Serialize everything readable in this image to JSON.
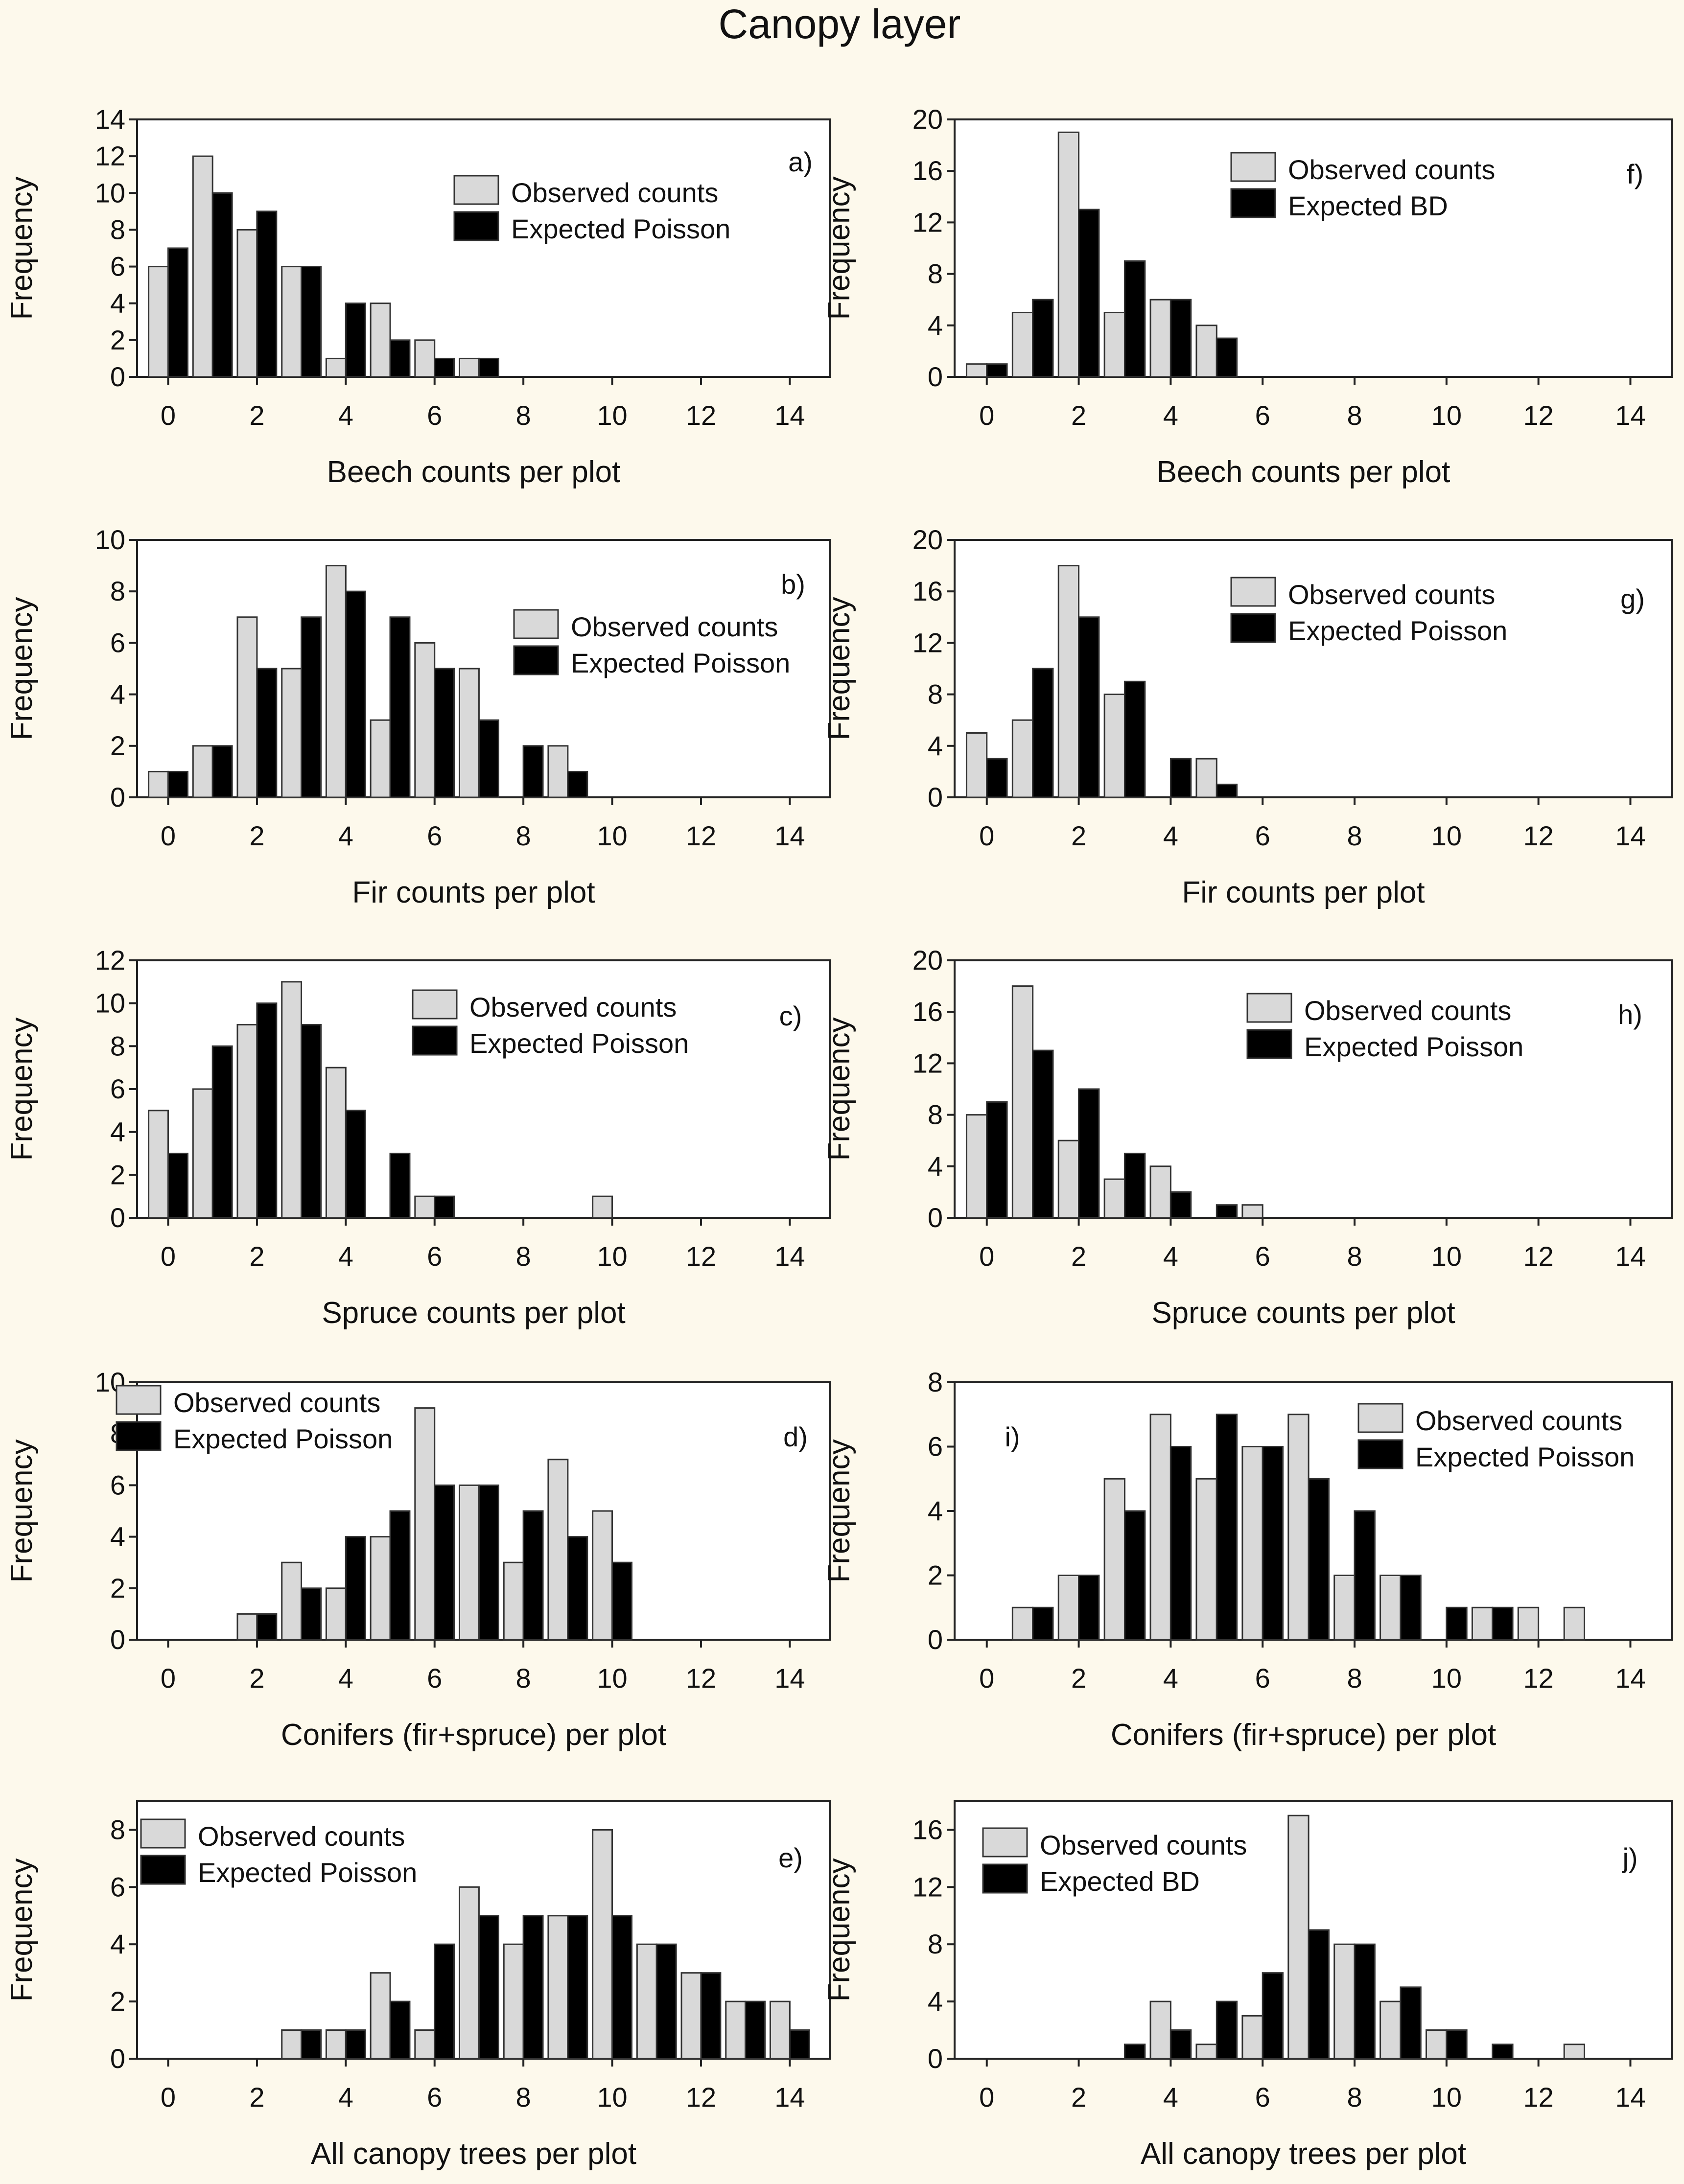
{
  "title": "Canopy layer",
  "colors": {
    "observed": "#d9d9d9",
    "expected": "#000000",
    "background": "#fdf9ec",
    "frame": "#222222"
  },
  "chart_data": [
    {
      "id": "a",
      "label": "a)",
      "type": "bar",
      "xlabel": "Beech counts per plot",
      "ylabel": "Frequency",
      "xlim": [
        -0.7,
        14.9
      ],
      "xticks": [
        0,
        2,
        4,
        6,
        8,
        10,
        12,
        14
      ],
      "ylim": [
        0,
        14
      ],
      "yticks": [
        0,
        2,
        4,
        6,
        8,
        10,
        12,
        14
      ],
      "legend_position": "top-right",
      "series": [
        {
          "name": "Observed counts",
          "x": [
            0,
            1,
            2,
            3,
            4,
            5,
            6,
            7
          ],
          "values": [
            6,
            12,
            8,
            6,
            1,
            4,
            2,
            1
          ]
        },
        {
          "name": "Expected Poisson",
          "x": [
            0,
            1,
            2,
            3,
            4,
            5,
            6,
            7
          ],
          "values": [
            7,
            10,
            9,
            6,
            4,
            2,
            1,
            1
          ]
        }
      ]
    },
    {
      "id": "f",
      "label": "f)",
      "type": "bar",
      "xlabel": "Beech counts per plot",
      "ylabel": "Frequency",
      "xlim": [
        -0.7,
        14.9
      ],
      "xticks": [
        0,
        2,
        4,
        6,
        8,
        10,
        12,
        14
      ],
      "ylim": [
        0,
        20
      ],
      "yticks": [
        0,
        4,
        8,
        12,
        16,
        20
      ],
      "legend_position": "top-right",
      "series": [
        {
          "name": "Observed counts",
          "x": [
            0,
            1,
            2,
            3,
            4,
            5
          ],
          "values": [
            1,
            5,
            19,
            5,
            6,
            4
          ]
        },
        {
          "name": "Expected BD",
          "x": [
            0,
            1,
            2,
            3,
            4,
            5
          ],
          "values": [
            1,
            6,
            13,
            9,
            6,
            3
          ]
        }
      ]
    },
    {
      "id": "b",
      "label": "b)",
      "type": "bar",
      "xlabel": "Fir counts per plot",
      "ylabel": "Frequency",
      "xlim": [
        -0.7,
        14.9
      ],
      "xticks": [
        0,
        2,
        4,
        6,
        8,
        10,
        12,
        14
      ],
      "ylim": [
        0,
        10
      ],
      "yticks": [
        0,
        2,
        4,
        6,
        8,
        10
      ],
      "legend_position": "top-right",
      "series": [
        {
          "name": "Observed counts",
          "x": [
            0,
            1,
            2,
            3,
            4,
            5,
            6,
            7,
            8,
            9
          ],
          "values": [
            1,
            2,
            7,
            5,
            9,
            3,
            6,
            5,
            0,
            2
          ]
        },
        {
          "name": "Expected Poisson",
          "x": [
            0,
            1,
            2,
            3,
            4,
            5,
            6,
            7,
            8,
            9
          ],
          "values": [
            1,
            2,
            5,
            7,
            8,
            7,
            5,
            3,
            2,
            1
          ]
        }
      ]
    },
    {
      "id": "g",
      "label": "g)",
      "type": "bar",
      "xlabel": "Fir counts per plot",
      "ylabel": "Frequency",
      "xlim": [
        -0.7,
        14.9
      ],
      "xticks": [
        0,
        2,
        4,
        6,
        8,
        10,
        12,
        14
      ],
      "ylim": [
        0,
        20
      ],
      "yticks": [
        0,
        4,
        8,
        12,
        16,
        20
      ],
      "legend_position": "top-right",
      "series": [
        {
          "name": "Observed counts",
          "x": [
            0,
            1,
            2,
            3,
            4,
            5
          ],
          "values": [
            5,
            6,
            18,
            8,
            0,
            3
          ]
        },
        {
          "name": "Expected Poisson",
          "x": [
            0,
            1,
            2,
            3,
            4,
            5
          ],
          "values": [
            3,
            10,
            14,
            9,
            3,
            1
          ]
        }
      ]
    },
    {
      "id": "c",
      "label": "c)",
      "type": "bar",
      "xlabel": "Spruce counts per plot",
      "ylabel": "Frequency",
      "xlim": [
        -0.7,
        14.9
      ],
      "xticks": [
        0,
        2,
        4,
        6,
        8,
        10,
        12,
        14
      ],
      "ylim": [
        0,
        12
      ],
      "yticks": [
        0,
        2,
        4,
        6,
        8,
        10,
        12
      ],
      "legend_position": "top-right",
      "series": [
        {
          "name": "Observed counts",
          "x": [
            0,
            1,
            2,
            3,
            4,
            5,
            6,
            10
          ],
          "values": [
            5,
            6,
            9,
            11,
            7,
            0,
            1,
            1
          ]
        },
        {
          "name": "Expected Poisson",
          "x": [
            0,
            1,
            2,
            3,
            4,
            5,
            6
          ],
          "values": [
            3,
            8,
            10,
            9,
            5,
            3,
            1
          ]
        }
      ]
    },
    {
      "id": "h",
      "label": "h)",
      "type": "bar",
      "xlabel": "Spruce counts per plot",
      "ylabel": "Frequency",
      "xlim": [
        -0.7,
        14.9
      ],
      "xticks": [
        0,
        2,
        4,
        6,
        8,
        10,
        12,
        14
      ],
      "ylim": [
        0,
        20
      ],
      "yticks": [
        0,
        4,
        8,
        12,
        16,
        20
      ],
      "legend_position": "top-right",
      "series": [
        {
          "name": "Observed counts",
          "x": [
            0,
            1,
            2,
            3,
            4,
            5,
            6
          ],
          "values": [
            8,
            18,
            6,
            3,
            4,
            0,
            1
          ]
        },
        {
          "name": "Expected Poisson",
          "x": [
            0,
            1,
            2,
            3,
            4,
            5
          ],
          "values": [
            9,
            13,
            10,
            5,
            2,
            1
          ]
        }
      ]
    },
    {
      "id": "d",
      "label": "d)",
      "type": "bar",
      "xlabel": "Conifers (fir+spruce) per plot",
      "ylabel": "Frequency",
      "xlim": [
        -0.7,
        14.9
      ],
      "xticks": [
        0,
        2,
        4,
        6,
        8,
        10,
        12,
        14
      ],
      "ylim": [
        0,
        10
      ],
      "yticks": [
        0,
        2,
        4,
        6,
        8,
        10
      ],
      "legend_position": "top-left",
      "series": [
        {
          "name": "Observed counts",
          "x": [
            2,
            3,
            4,
            5,
            6,
            7,
            8,
            9,
            10
          ],
          "values": [
            1,
            3,
            2,
            4,
            9,
            6,
            3,
            7,
            5
          ]
        },
        {
          "name": "Expected Poisson",
          "x": [
            2,
            3,
            4,
            5,
            6,
            7,
            8,
            9,
            10
          ],
          "values": [
            1,
            2,
            4,
            5,
            6,
            6,
            5,
            4,
            3
          ]
        }
      ]
    },
    {
      "id": "i",
      "label": "i)",
      "type": "bar",
      "xlabel": "Conifers (fir+spruce) per plot",
      "ylabel": "Frequency",
      "xlim": [
        -0.7,
        14.9
      ],
      "xticks": [
        0,
        2,
        4,
        6,
        8,
        10,
        12,
        14
      ],
      "ylim": [
        0,
        8
      ],
      "yticks": [
        0,
        2,
        4,
        6,
        8
      ],
      "legend_position": "top-right",
      "series": [
        {
          "name": "Observed counts",
          "x": [
            1,
            2,
            3,
            4,
            5,
            6,
            7,
            8,
            9,
            11,
            12,
            13
          ],
          "values": [
            1,
            2,
            5,
            7,
            5,
            6,
            7,
            2,
            2,
            1,
            1,
            1
          ]
        },
        {
          "name": "Expected Poisson",
          "x": [
            1,
            2,
            3,
            4,
            5,
            6,
            7,
            8,
            9,
            10,
            11
          ],
          "values": [
            1,
            2,
            4,
            6,
            7,
            6,
            5,
            4,
            2,
            1,
            1
          ]
        }
      ]
    },
    {
      "id": "e",
      "label": "e)",
      "type": "bar",
      "xlabel": "All canopy trees per plot",
      "ylabel": "Frequency",
      "xlim": [
        -0.7,
        14.9
      ],
      "xticks": [
        0,
        2,
        4,
        6,
        8,
        10,
        12,
        14
      ],
      "ylim": [
        0,
        9
      ],
      "yticks": [
        0,
        2,
        4,
        6,
        8
      ],
      "legend_position": "top-left",
      "series": [
        {
          "name": "Observed counts",
          "x": [
            3,
            4,
            5,
            6,
            7,
            8,
            9,
            10,
            11,
            12,
            13,
            14
          ],
          "values": [
            1,
            1,
            3,
            1,
            6,
            4,
            5,
            8,
            4,
            3,
            2,
            2
          ]
        },
        {
          "name": "Expected Poisson",
          "x": [
            3,
            4,
            5,
            6,
            7,
            8,
            9,
            10,
            11,
            12,
            13,
            14
          ],
          "values": [
            1,
            1,
            2,
            4,
            5,
            5,
            5,
            5,
            4,
            3,
            2,
            1
          ]
        }
      ]
    },
    {
      "id": "j",
      "label": "j)",
      "type": "bar",
      "xlabel": "All canopy trees per plot",
      "ylabel": "Frequency",
      "xlim": [
        -0.7,
        14.9
      ],
      "xticks": [
        0,
        2,
        4,
        6,
        8,
        10,
        12,
        14
      ],
      "ylim": [
        0,
        18
      ],
      "yticks": [
        0,
        4,
        8,
        12,
        16
      ],
      "legend_position": "top-left",
      "series": [
        {
          "name": "Observed counts",
          "x": [
            4,
            5,
            6,
            7,
            8,
            9,
            10,
            13
          ],
          "values": [
            4,
            1,
            3,
            17,
            8,
            4,
            2,
            1
          ]
        },
        {
          "name": "Expected BD",
          "x": [
            3,
            4,
            5,
            6,
            7,
            8,
            9,
            10,
            11
          ],
          "values": [
            1,
            2,
            4,
            6,
            9,
            8,
            5,
            2,
            1
          ]
        }
      ]
    }
  ]
}
